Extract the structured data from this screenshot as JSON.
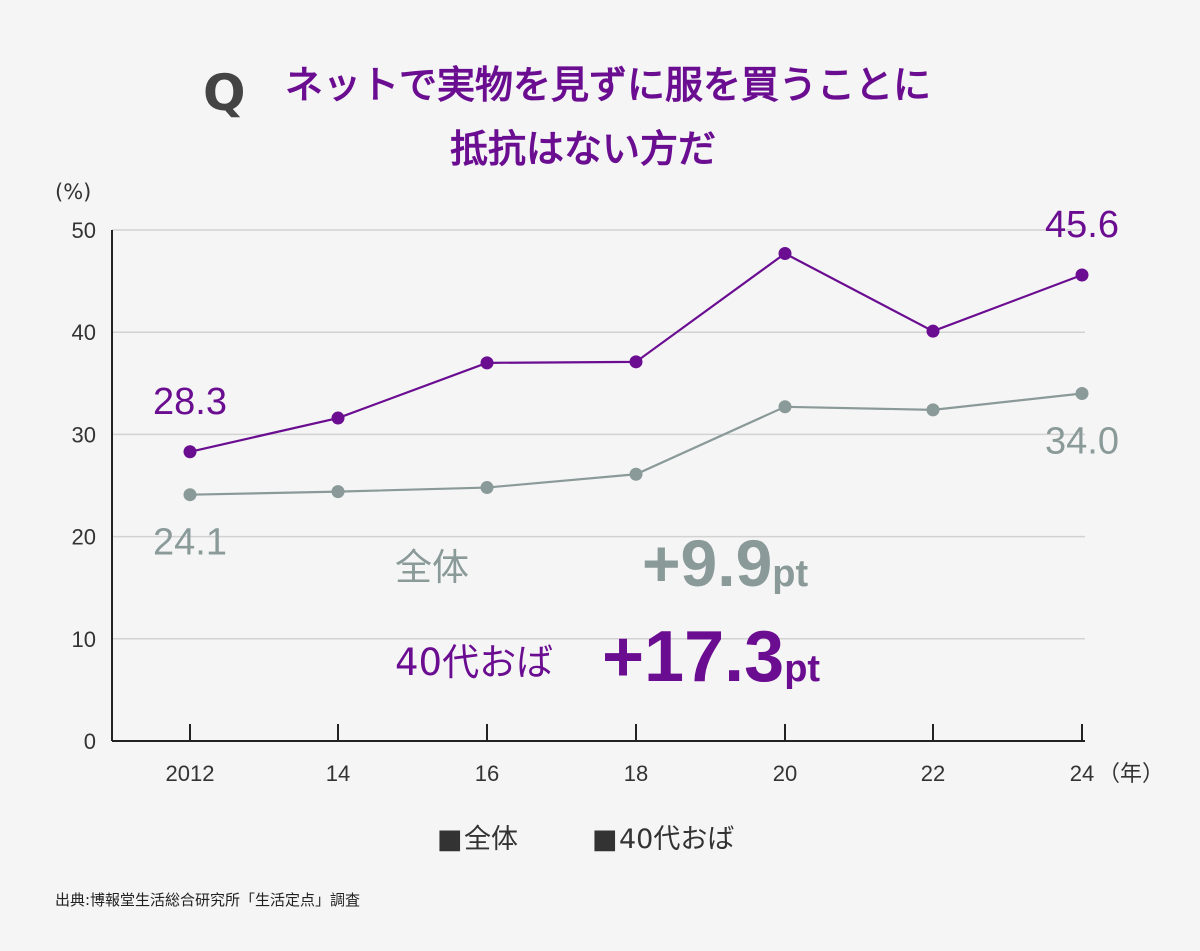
{
  "chart_data": {
    "type": "line",
    "title": {
      "marker": "Q",
      "lines": [
        "ネットで実物を見ずに服を買うことに",
        "抵抗はない方だ"
      ]
    },
    "ylabel": "(%)",
    "xlabel": "（年）",
    "ylim": [
      0,
      50
    ],
    "yticks": [
      0,
      10,
      20,
      30,
      40,
      50
    ],
    "grid": true,
    "categories": [
      "2012",
      "14",
      "16",
      "18",
      "20",
      "22",
      "24"
    ],
    "series": [
      {
        "name": "全体",
        "color": "#8a9a98",
        "values": [
          24.1,
          24.4,
          24.8,
          26.1,
          32.7,
          32.4,
          34.0
        ],
        "labels": [
          {
            "index": 0,
            "text": "24.1",
            "position": "below"
          },
          {
            "index": 6,
            "text": "34.0",
            "position": "below"
          }
        ]
      },
      {
        "name": "40代おば",
        "color": "#6a0d91",
        "values": [
          28.3,
          31.6,
          37.0,
          37.1,
          47.7,
          40.1,
          45.6
        ],
        "labels": [
          {
            "index": 0,
            "text": "28.3",
            "position": "above"
          },
          {
            "index": 6,
            "text": "45.6",
            "position": "above"
          }
        ]
      }
    ],
    "annotations": [
      {
        "label": "全体",
        "value": "+9.9",
        "unit": "pt",
        "color": "#8a9a98"
      },
      {
        "label": "40代おば",
        "value": "+17.3",
        "unit": "pt",
        "color": "#6a0d91"
      }
    ],
    "legend": {
      "position": "bottom",
      "marker": "■"
    },
    "source": "出典:博報堂生活総合研究所「生活定点」調査"
  }
}
